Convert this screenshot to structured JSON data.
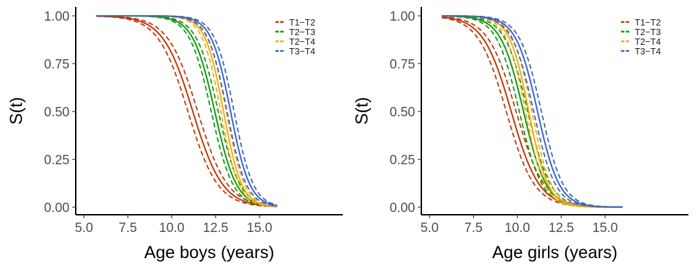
{
  "chart_data": [
    {
      "type": "line",
      "xlabel": "Age boys (years)",
      "ylabel": "S(t)",
      "xlim": [
        5.0,
        16.5
      ],
      "ylim": [
        0,
        1
      ],
      "x_ticks": [
        "5.0",
        "7.5",
        "10.0",
        "12.5",
        "15.0"
      ],
      "x_tick_values": [
        5.0,
        7.5,
        10.0,
        12.5,
        15.0
      ],
      "y_ticks": [
        "0.00",
        "0.25",
        "0.50",
        "0.75",
        "1.00"
      ],
      "y_tick_values": [
        0,
        0.25,
        0.5,
        0.75,
        1.0
      ],
      "grid": false,
      "legend_position": "top-right",
      "x_range": [
        5.7,
        16.0
      ],
      "series": [
        {
          "name": "T1−T2",
          "color": "#c1390b",
          "median": 11.2,
          "scale": 0.85,
          "band": 0.28
        },
        {
          "name": "T2−T3",
          "color": "#119a11",
          "median": 12.45,
          "scale": 0.62,
          "band": 0.2
        },
        {
          "name": "T2−T4",
          "color": "#f5ab0f",
          "median": 12.95,
          "scale": 0.52,
          "band": 0.16
        },
        {
          "name": "T3−T4",
          "color": "#3d65c8",
          "median": 13.35,
          "scale": 0.55,
          "band": 0.2
        }
      ]
    },
    {
      "type": "line",
      "xlabel": "Age girls (years)",
      "ylabel": "S(t)",
      "xlim": [
        5.0,
        16.5
      ],
      "ylim": [
        0,
        1
      ],
      "x_ticks": [
        "5.0",
        "7.5",
        "10.0",
        "12.5",
        "15.0"
      ],
      "x_tick_values": [
        5.0,
        7.5,
        10.0,
        12.5,
        15.0
      ],
      "y_ticks": [
        "0.00",
        "0.25",
        "0.50",
        "0.75",
        "1.00"
      ],
      "y_tick_values": [
        0,
        0.25,
        0.5,
        0.75,
        1.0
      ],
      "grid": false,
      "legend_position": "top-right",
      "x_range": [
        5.7,
        16.0
      ],
      "series": [
        {
          "name": "T1−T2",
          "color": "#c1390b",
          "median": 9.65,
          "scale": 0.8,
          "band": 0.28
        },
        {
          "name": "T2−T3",
          "color": "#119a11",
          "median": 10.35,
          "scale": 0.65,
          "band": 0.24
        },
        {
          "name": "T2−T4",
          "color": "#f5ab0f",
          "median": 10.65,
          "scale": 0.55,
          "band": 0.18
        },
        {
          "name": "T3−T4",
          "color": "#3d65c8",
          "median": 11.15,
          "scale": 0.62,
          "band": 0.22
        }
      ]
    }
  ]
}
